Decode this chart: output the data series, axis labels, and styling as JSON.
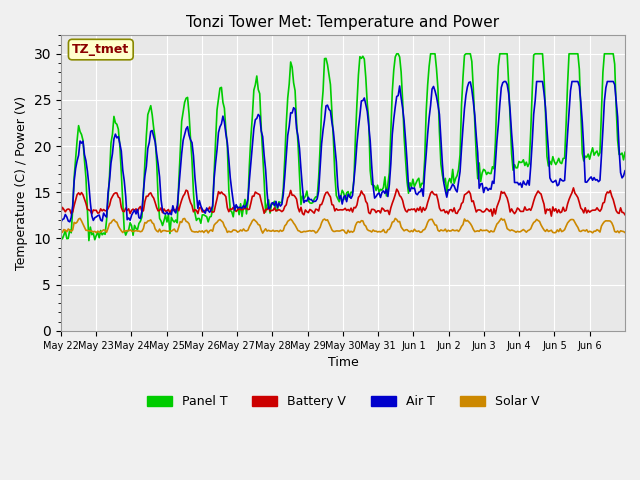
{
  "title": "Tonzi Tower Met: Temperature and Power",
  "xlabel": "Time",
  "ylabel": "Temperature (C) / Power (V)",
  "ylim": [
    0,
    32
  ],
  "yticks": [
    0,
    5,
    10,
    15,
    20,
    25,
    30
  ],
  "annotation_text": "TZ_tmet",
  "annotation_color": "#8B0000",
  "annotation_bg": "#FFFFCC",
  "colors": {
    "panel_t": "#00CC00",
    "battery_v": "#CC0000",
    "air_t": "#0000CC",
    "solar_v": "#CC8800"
  },
  "legend_labels": [
    "Panel T",
    "Battery V",
    "Air T",
    "Solar V"
  ],
  "bg_color": "#E8E8E8",
  "n_days": 16,
  "x_tick_labels": [
    "May 22",
    "May 23",
    "May 24",
    "May 25",
    "May 26",
    "May 27",
    "May 28",
    "May 29",
    "May 30",
    "May 31",
    "Jun 1",
    "Jun 2",
    "Jun 3",
    "Jun 4",
    "Jun 5",
    "Jun 6"
  ]
}
